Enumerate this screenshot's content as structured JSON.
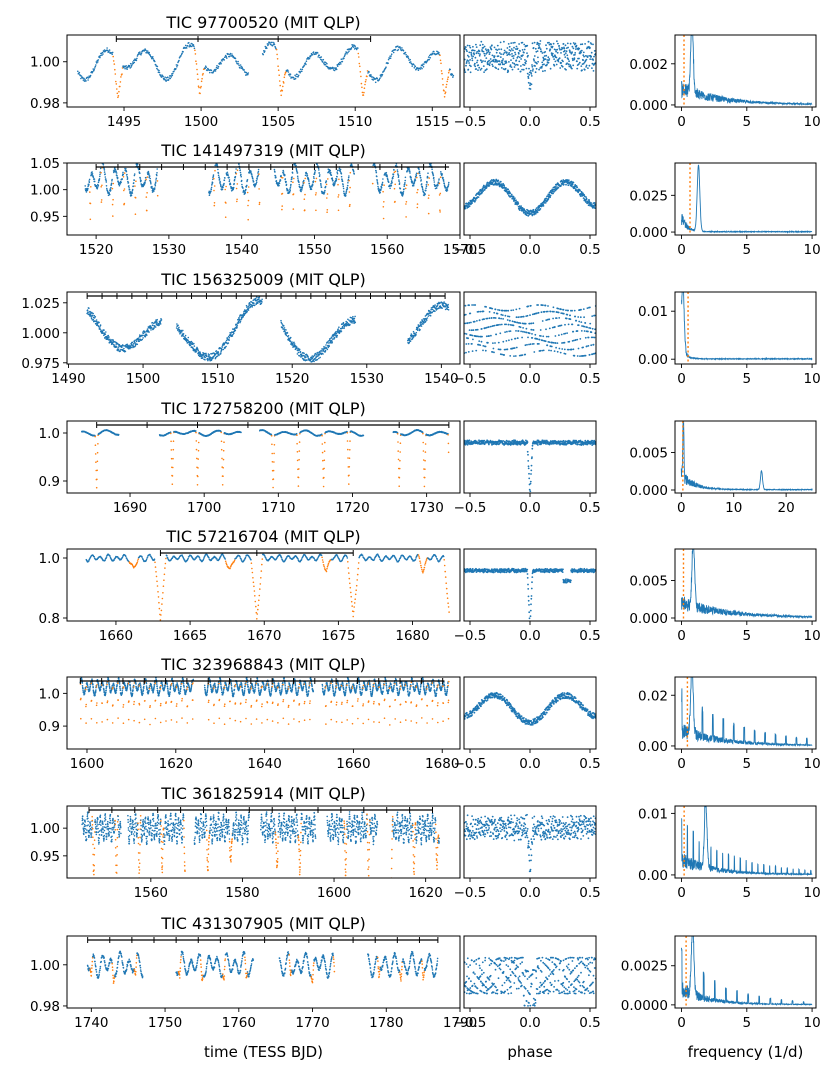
{
  "figure": {
    "xlabels": {
      "time": "time (TESS BJD)",
      "phase": "phase",
      "frequency": "frequency (1/d)"
    },
    "colors": {
      "blue": "#1f77b4",
      "orange": "#ff7f0e"
    }
  },
  "chart_data": [
    {
      "type": "scatter",
      "title": "TIC 97700520 (MIT QLP)",
      "time": {
        "xlim": [
          1491.3,
          1516.8
        ],
        "ylim": [
          0.978,
          1.013
        ],
        "xticks": [
          1495,
          1500,
          1505,
          1510,
          1515
        ],
        "xtick_labels": [
          "1495",
          "1500",
          "1505",
          "1510",
          "1515"
        ],
        "yticks": [
          0.98,
          1.0
        ],
        "ytick_labels": [
          "0.98",
          "1.00"
        ],
        "segments": [
          [
            1492.0,
            1503.1
          ],
          [
            1504.0,
            1516.4
          ]
        ],
        "period_bar": [
          1494.5,
          1511.0
        ],
        "bar_ticks": [
          1494.5,
          1499.8,
          1505.0,
          1511.0
        ],
        "base": 1.0,
        "amp": 0.006,
        "var_period": 2.7,
        "dip_period": 5.3,
        "dip_t0": 1494.6,
        "dip_depth": 0.018,
        "dip_style": "scatter"
      },
      "phase": {
        "ylim": [
          0.978,
          1.013
        ],
        "depth": 0.016,
        "amp": 0.006,
        "style": "scatter"
      },
      "periodogram": {
        "xlim": [
          -0.5,
          10.3
        ],
        "ylim": [
          -0.0001,
          0.0034
        ],
        "xticks": [
          0,
          5,
          10
        ],
        "xtick_labels": [
          "0",
          "5",
          "10"
        ],
        "yticks": [
          0.0,
          0.002
        ],
        "ytick_labels": [
          "0.000",
          "0.002"
        ],
        "peak": 0.0033,
        "peak_freq": 0.8,
        "decay": 3.0,
        "comb": 0.0,
        "maxf": 10,
        "marker": 0.19
      }
    },
    {
      "type": "scatter",
      "title": "TIC 141497319 (MIT QLP)",
      "time": {
        "xlim": [
          1516.0,
          1570.0
        ],
        "ylim": [
          0.915,
          1.05
        ],
        "xticks": [
          1520,
          1530,
          1540,
          1550,
          1560,
          1570
        ],
        "xtick_labels": [
          "1520",
          "1530",
          "1540",
          "1550",
          "1560",
          "1570"
        ],
        "yticks": [
          0.95,
          1.0,
          1.05
        ],
        "ytick_labels": [
          "0.95",
          "1.00",
          "1.05"
        ],
        "segments": [
          [
            1518.5,
            1528.5
          ],
          [
            1535.5,
            1542.5
          ],
          [
            1544.5,
            1555.5
          ],
          [
            1558.0,
            1568.5
          ]
        ],
        "period_bar": [
          1520.0,
          1568.5
        ],
        "bar_ticks": [
          1520.0,
          1523.0,
          1526.0,
          1529.0,
          1532.0,
          1535.0,
          1538.0,
          1541.0,
          1544.0,
          1547.0,
          1550.0,
          1553.0,
          1556.0,
          1559.0,
          1562.0,
          1565.0,
          1568.0
        ],
        "base": 1.02,
        "amp": 0.02,
        "var_period": 1.55,
        "dip_period": 1.55,
        "dip_t0": 1519.2,
        "dip_depth": 0.08,
        "dip_style": "scatter"
      },
      "phase": {
        "ylim": [
          0.915,
          1.05
        ],
        "depth": 0.07,
        "amp": 0.0,
        "style": "band",
        "double": true
      },
      "periodogram": {
        "xlim": [
          -0.5,
          10.3
        ],
        "ylim": [
          -0.002,
          0.047
        ],
        "xticks": [
          0,
          5,
          10
        ],
        "xtick_labels": [
          "0",
          "5",
          "10"
        ],
        "yticks": [
          0.0,
          0.025
        ],
        "ytick_labels": [
          "0.000",
          "0.025"
        ],
        "peak": 0.045,
        "peak_freq": 1.3,
        "decay": 0.4,
        "comb": 0.0,
        "maxf": 10,
        "marker": 0.65
      }
    },
    {
      "type": "scatter",
      "title": "TIC 156325009 (MIT QLP)",
      "time": {
        "xlim": [
          1489.8,
          1542.5
        ],
        "ylim": [
          0.974,
          1.034
        ],
        "xticks": [
          1490,
          1500,
          1510,
          1520,
          1530,
          1540
        ],
        "xtick_labels": [
          "1490",
          "1500",
          "1510",
          "1520",
          "1530",
          "1540"
        ],
        "yticks": [
          0.975,
          1.0,
          1.025
        ],
        "ytick_labels": [
          "0.975",
          "1.000",
          "1.025"
        ],
        "segments": [
          [
            1492.5,
            1502.5
          ],
          [
            1504.5,
            1516.0
          ],
          [
            1518.5,
            1528.5
          ],
          [
            1535.5,
            1541.0
          ]
        ],
        "period_bar": [
          1492.5,
          1540.5
        ],
        "bar_ticks": [
          1492.5,
          1494.5,
          1496.5,
          1498.5,
          1500.5,
          1502.5,
          1504.5,
          1506.5,
          1508.5,
          1510.5,
          1512.5,
          1514.5,
          1516.5,
          1518.5,
          1520.5,
          1522.5,
          1524.5,
          1526.5,
          1528.5,
          1530.5,
          1532.5,
          1534.5,
          1536.5,
          1538.5,
          1540.5
        ],
        "base": 1.0,
        "amp": 0.018,
        "var_period": 12.5,
        "dip_period": 2.0,
        "dip_t0": 1493.5,
        "dip_depth": 0.0,
        "dip_style": "none"
      },
      "phase": {
        "ylim": [
          0.974,
          1.034
        ],
        "depth": 0.0,
        "amp": 0.0,
        "style": "spread"
      },
      "periodogram": {
        "xlim": [
          -0.5,
          10.3
        ],
        "ylim": [
          -0.001,
          0.014
        ],
        "xticks": [
          0,
          5,
          10
        ],
        "xtick_labels": [
          "0",
          "5",
          "10"
        ],
        "yticks": [
          0.0,
          0.01
        ],
        "ytick_labels": [
          "0.00",
          "0.01"
        ],
        "peak": 0.0135,
        "peak_freq": 0.1,
        "decay": 0.3,
        "comb": 0.0,
        "maxf": 10,
        "marker": 0.5
      }
    },
    {
      "type": "scatter",
      "title": "TIC 172758200 (MIT QLP)",
      "time": {
        "xlim": [
          1681.5,
          1734.5
        ],
        "ylim": [
          0.875,
          1.025
        ],
        "xticks": [
          1690,
          1700,
          1710,
          1720,
          1730
        ],
        "xtick_labels": [
          "1690",
          "1700",
          "1710",
          "1720",
          "1730"
        ],
        "yticks": [
          0.9,
          1.0
        ],
        "ytick_labels": [
          "0.9",
          "1.0"
        ],
        "segments": [
          [
            1683.5,
            1688.5
          ],
          [
            1694.0,
            1705.0
          ],
          [
            1707.5,
            1721.5
          ],
          [
            1725.5,
            1733.0
          ]
        ],
        "period_bar": [
          1685.5,
          1733.0
        ],
        "bar_ticks": [
          1685.5,
          1692.3,
          1699.1,
          1705.9,
          1712.7,
          1719.5,
          1726.3,
          1733.0
        ],
        "base": 1.0,
        "amp": 0.004,
        "var_period": 3.0,
        "dip_period": 3.4,
        "dip_t0": 1685.5,
        "dip_depth": 0.11,
        "dip_style": "scatter"
      },
      "phase": {
        "ylim": [
          0.875,
          1.025
        ],
        "depth": 0.11,
        "amp": 0.004,
        "style": "scatter"
      },
      "periodogram": {
        "xlim": [
          -1.2,
          25.7
        ],
        "ylim": [
          -0.0004,
          0.0092
        ],
        "xticks": [
          0,
          10,
          20
        ],
        "xtick_labels": [
          "0",
          "10",
          "20"
        ],
        "yticks": [
          0.0,
          0.005
        ],
        "ytick_labels": [
          "0.000",
          "0.005"
        ],
        "peak": 0.0088,
        "peak_freq": 0.4,
        "decay": 2.4,
        "comb": 0.0,
        "maxf": 25,
        "marker": 0.3,
        "extra_peak": [
          15.3,
          0.0025
        ]
      }
    },
    {
      "type": "scatter",
      "title": "TIC 57216704 (MIT QLP)",
      "time": {
        "xlim": [
          1656.7,
          1683.2
        ],
        "ylim": [
          0.79,
          1.03
        ],
        "xticks": [
          1660,
          1665,
          1670,
          1675,
          1680
        ],
        "xtick_labels": [
          "1660",
          "1665",
          "1670",
          "1675",
          "1680"
        ],
        "yticks": [
          0.8,
          1.0
        ],
        "ytick_labels": [
          "0.8",
          "1.0"
        ],
        "segments": [
          [
            1658.0,
            1682.5
          ]
        ],
        "period_bar": [
          1663.0,
          1676.0
        ],
        "bar_ticks": [
          1663.0,
          1669.5,
          1676.0
        ],
        "base": 1.0,
        "amp": 0.008,
        "var_period": 0.55,
        "dip_period": 6.5,
        "dip_t0": 1663.0,
        "dip_depth": 0.2,
        "dip_style": "scatter",
        "secondary": [
          1661.2,
          6.5,
          0.04
        ]
      },
      "phase": {
        "ylim": [
          0.79,
          1.03
        ],
        "depth": 0.19,
        "amp": 0.005,
        "style": "band",
        "secondary": 0.28
      },
      "periodogram": {
        "xlim": [
          -0.5,
          10.3
        ],
        "ylim": [
          -0.0004,
          0.0092
        ],
        "xticks": [
          0,
          5,
          10
        ],
        "xtick_labels": [
          "0",
          "5",
          "10"
        ],
        "yticks": [
          0.0,
          0.005
        ],
        "ytick_labels": [
          "0.000",
          "0.005"
        ],
        "peak": 0.0085,
        "peak_freq": 0.9,
        "decay": 3.5,
        "comb": 0.0,
        "maxf": 10,
        "marker": 0.15
      }
    },
    {
      "type": "scatter",
      "title": "TIC 323968843 (MIT QLP)",
      "time": {
        "xlim": [
          1595.5,
          1684.0
        ],
        "ylim": [
          0.83,
          1.05
        ],
        "xticks": [
          1600,
          1620,
          1640,
          1660,
          1680
        ],
        "xtick_labels": [
          "1600",
          "1620",
          "1640",
          "1660",
          "1680"
        ],
        "yticks": [
          0.9,
          1.0
        ],
        "ytick_labels": [
          "0.9",
          "1.0"
        ],
        "segments": [
          [
            1598.5,
            1624.0
          ],
          [
            1626.5,
            1651.0
          ],
          [
            1653.0,
            1681.5
          ]
        ],
        "period_bar": [
          1598.5,
          1680.5
        ],
        "bar_ticks": [
          1598.5,
          1603.3,
          1608.1,
          1612.9,
          1617.7,
          1622.5,
          1627.3,
          1632.1,
          1636.9,
          1641.7,
          1646.5,
          1651.3,
          1656.1,
          1660.9,
          1665.7,
          1670.5,
          1675.3,
          1680.1
        ],
        "base": 1.02,
        "amp": 0.018,
        "var_period": 1.2,
        "dip_period": 1.2,
        "dip_t0": 1598.6,
        "dip_depth": 0.12,
        "dip_style": "scatter"
      },
      "phase": {
        "ylim": [
          0.83,
          1.05
        ],
        "depth": 0.1,
        "amp": 0.0,
        "style": "band",
        "double": true
      },
      "periodogram": {
        "xlim": [
          -0.5,
          10.3
        ],
        "ylim": [
          -0.0012,
          0.0272
        ],
        "xticks": [
          0,
          5,
          10
        ],
        "xtick_labels": [
          "0",
          "5",
          "10"
        ],
        "yticks": [
          0.0,
          0.02
        ],
        "ytick_labels": [
          "0.00",
          "0.02"
        ],
        "peak": 0.026,
        "peak_freq": 0.8,
        "decay": 3.0,
        "comb": 0.8,
        "maxf": 10,
        "marker": 0.45
      }
    },
    {
      "type": "scatter",
      "title": "TIC 361825914 (MIT QLP)",
      "time": {
        "xlim": [
          1541.7,
          1627.5
        ],
        "ylim": [
          0.91,
          1.04
        ],
        "xticks": [
          1560,
          1580,
          1600,
          1620
        ],
        "xtick_labels": [
          "1560",
          "1580",
          "1600",
          "1620"
        ],
        "yticks": [
          0.95,
          1.0
        ],
        "ytick_labels": [
          "0.95",
          "1.00"
        ],
        "segments": [
          [
            1545.0,
            1553.5
          ],
          [
            1555.0,
            1567.5
          ],
          [
            1569.5,
            1581.5
          ],
          [
            1584.0,
            1596.0
          ],
          [
            1598.5,
            1609.5
          ],
          [
            1612.5,
            1623.0
          ]
        ],
        "period_bar": [
          1546.5,
          1621.5
        ],
        "bar_ticks": [
          1546.5,
          1551.5,
          1556.5,
          1561.5,
          1566.5,
          1571.5,
          1576.5,
          1581.5,
          1586.5,
          1591.5,
          1596.5,
          1601.5,
          1606.5,
          1611.5,
          1616.5,
          1621.5
        ],
        "base": 1.0,
        "amp": 0.018,
        "var_period": 0.55,
        "dip_period": 5.0,
        "dip_t0": 1547.5,
        "dip_depth": 0.08,
        "dip_style": "scatter"
      },
      "phase": {
        "ylim": [
          0.91,
          1.04
        ],
        "depth": 0.08,
        "amp": 0.018,
        "style": "band"
      },
      "periodogram": {
        "xlim": [
          -0.5,
          10.3
        ],
        "ylim": [
          -0.0005,
          0.0112
        ],
        "xticks": [
          0,
          5,
          10
        ],
        "xtick_labels": [
          "0",
          "5",
          "10"
        ],
        "yticks": [
          0.0,
          0.01
        ],
        "ytick_labels": [
          "0.00",
          "0.01"
        ],
        "peak": 0.0105,
        "peak_freq": 1.85,
        "decay": 2.5,
        "comb": 0.45,
        "maxf": 10,
        "marker": 0.2
      }
    },
    {
      "type": "scatter",
      "title": "TIC 431307905 (MIT QLP)",
      "time": {
        "xlim": [
          1736.7,
          1790.0
        ],
        "ylim": [
          0.979,
          1.014
        ],
        "xticks": [
          1740,
          1750,
          1760,
          1770,
          1780,
          1790
        ],
        "xtick_labels": [
          "1740",
          "1750",
          "1760",
          "1770",
          "1780",
          "1790"
        ],
        "yticks": [
          0.98,
          1.0
        ],
        "ytick_labels": [
          "0.98",
          "1.00"
        ],
        "segments": [
          [
            1739.5,
            1747.0
          ],
          [
            1751.5,
            1762.0
          ],
          [
            1765.5,
            1773.0
          ],
          [
            1777.5,
            1787.0
          ]
        ],
        "period_bar": [
          1739.5,
          1787.0
        ],
        "bar_ticks": [
          1739.5,
          1742.5,
          1745.5,
          1748.5,
          1751.5,
          1754.5,
          1757.5,
          1760.5,
          1763.5,
          1766.5,
          1769.5,
          1772.5,
          1775.5,
          1778.5,
          1781.5,
          1784.5,
          1787.0
        ],
        "base": 1.0,
        "amp": 0.004,
        "var_period": 1.2,
        "dip_period": 3.0,
        "dip_t0": 1740.0,
        "dip_depth": 0.007,
        "dip_style": "scatter"
      },
      "phase": {
        "ylim": [
          0.979,
          1.014
        ],
        "depth": 0.006,
        "amp": 0.005,
        "style": "spread2"
      },
      "periodogram": {
        "xlim": [
          -0.5,
          10.3
        ],
        "ylim": [
          -0.0002,
          0.0044
        ],
        "xticks": [
          0,
          5,
          10
        ],
        "xtick_labels": [
          "0",
          "5",
          "10"
        ],
        "yticks": [
          0.0,
          0.0025
        ],
        "ytick_labels": [
          "0.0000",
          "0.0025"
        ],
        "peak": 0.0043,
        "peak_freq": 0.85,
        "decay": 2.0,
        "comb": 0.85,
        "maxf": 10,
        "marker": 0.35
      }
    }
  ]
}
